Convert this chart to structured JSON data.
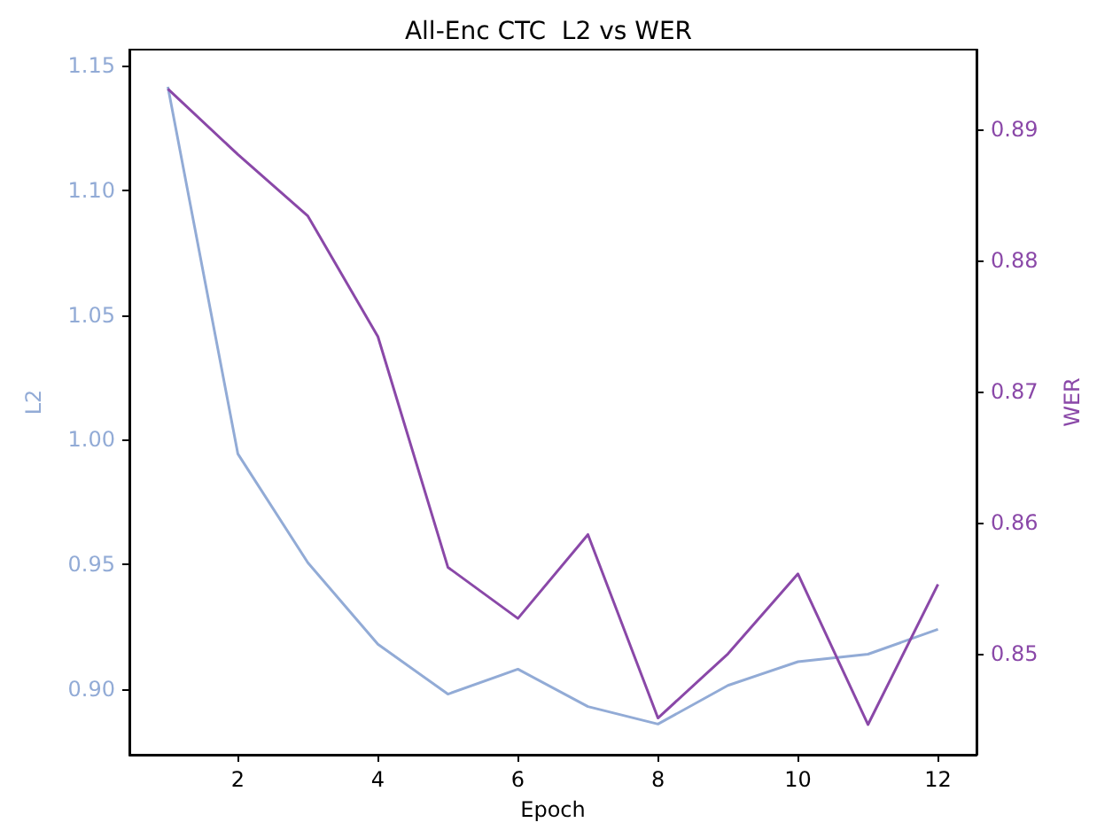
{
  "chart_data": {
    "type": "line",
    "title": "All-Enc CTC  L2 vs WER",
    "xlabel": "Epoch",
    "ylabel": "L2",
    "y2label": "WER",
    "x": [
      1,
      2,
      3,
      4,
      5,
      6,
      7,
      8,
      9,
      10,
      11,
      12
    ],
    "series": [
      {
        "color": "#92abd6",
        "values": [
          1.1415,
          0.9943,
          0.9507,
          0.918,
          0.898,
          0.908,
          0.893,
          0.886,
          0.9015,
          0.911,
          0.914,
          0.924
        ]
      },
      {
        "color": "#8a48a8",
        "axis": "y2",
        "values": [
          0.8931,
          0.8881,
          0.8834,
          0.8742,
          0.8566,
          0.8527,
          0.8591,
          0.8451,
          0.85,
          0.8561,
          0.8446,
          0.8553
        ]
      }
    ],
    "xlim": [
      0.45,
      12.55
    ],
    "xticks": [
      2,
      4,
      6,
      8,
      10,
      12
    ],
    "ylim": [
      0.8737,
      1.1564
    ],
    "yticks": [
      {
        "value": 0.9,
        "label": "0.90"
      },
      0.95,
      {
        "value": 1.0,
        "label": "1.00"
      },
      1.05,
      {
        "value": 1.1,
        "label": "1.10"
      },
      1.15
    ],
    "y2lim": [
      0.8423,
      0.8961
    ],
    "y2ticks": [
      0.85,
      0.86,
      0.87,
      0.88,
      0.89
    ],
    "grid": false,
    "marker": "none",
    "line_style": "solid"
  }
}
